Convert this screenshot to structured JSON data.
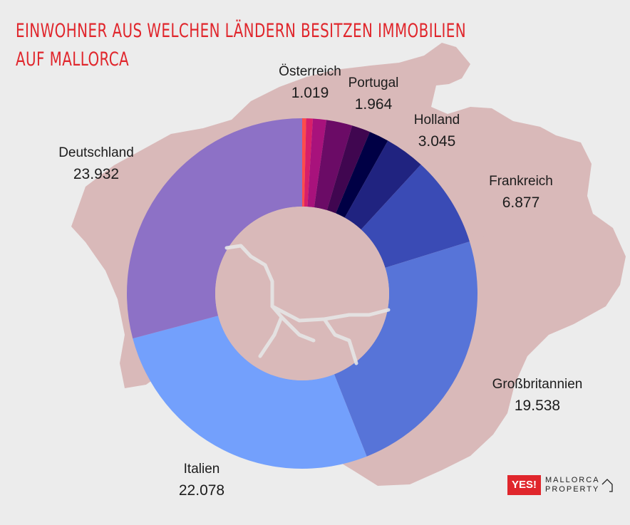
{
  "title_line1": "EINWOHNER AUS WELCHEN LÄNDERN BESITZEN IMMOBILIEN",
  "title_line2": "AUF MALLORCA",
  "colors": {
    "title": "#e0262c",
    "map": "#d9b9b9",
    "background": "#ececec"
  },
  "logo": {
    "yes": "YES!",
    "line1": "MALLORCA",
    "line2": "PROPERTY",
    "icon": "house-icon"
  },
  "chart_data": {
    "type": "pie",
    "subtype": "donut",
    "title": "EINWOHNER AUS WELCHEN LÄNDERN BESITZEN IMMOBILIEN AUF MALLORCA",
    "slices": [
      {
        "label": "",
        "value": 300,
        "color": "#fc4c4c"
      },
      {
        "label": "",
        "value": 500,
        "color": "#d81f6a"
      },
      {
        "label": "Österreich",
        "value": 1019,
        "display": "1.019",
        "color": "#a8127c"
      },
      {
        "label": "Portugal",
        "value": 1964,
        "display": "1.964",
        "color": "#6b0b66"
      },
      {
        "label": "",
        "value": 1400,
        "color": "#400650"
      },
      {
        "label": "",
        "value": 1500,
        "color": "#000045"
      },
      {
        "label": "Holland",
        "value": 3045,
        "display": "3.045",
        "color": "#202380"
      },
      {
        "label": "Frankreich",
        "value": 6877,
        "display": "6.877",
        "color": "#3a4bb5"
      },
      {
        "label": "Großbritannien",
        "value": 19538,
        "display": "19.538",
        "color": "#5774d8"
      },
      {
        "label": "Italien",
        "value": 22078,
        "display": "22.078",
        "color": "#73a0fc"
      },
      {
        "label": "Deutschland",
        "value": 23932,
        "display": "23.932",
        "color": "#8d71c6"
      }
    ]
  }
}
